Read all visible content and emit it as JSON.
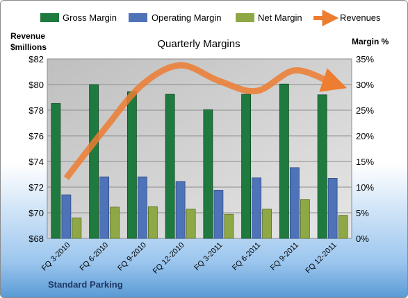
{
  "chart_data": {
    "type": "bar",
    "title": "Quarterly Margins",
    "footer": "Standard Parking",
    "categories": [
      "FQ 3-2010",
      "FQ 6-2010",
      "FQ 9-2010",
      "FQ 12-2010",
      "FQ 3-2011",
      "FQ 6-2011",
      "FQ 9-2011",
      "FQ 12-2011"
    ],
    "left_axis": {
      "label_line1": "Revenue",
      "label_line2": "$millions",
      "min": 68,
      "max": 82,
      "ticks": [
        "$68",
        "$70",
        "$72",
        "$74",
        "$76",
        "$78",
        "$80",
        "$82"
      ]
    },
    "right_axis": {
      "label": "Margin %",
      "min": 0,
      "max": 35,
      "ticks": [
        "0%",
        "5%",
        "10%",
        "15%",
        "20%",
        "25%",
        "30%",
        "35%"
      ]
    },
    "series": [
      {
        "name": "Gross Margin",
        "axis": "right",
        "color": "#1e7a3e",
        "values": [
          26.3,
          30.0,
          28.6,
          28.1,
          25.1,
          28.1,
          30.1,
          28.0
        ]
      },
      {
        "name": "Operating Margin",
        "axis": "right",
        "color": "#4f73b8",
        "values": [
          8.5,
          12.0,
          12.0,
          11.1,
          9.4,
          11.8,
          13.8,
          11.7
        ]
      },
      {
        "name": "Net Margin",
        "axis": "right",
        "color": "#8fa846",
        "values": [
          4.0,
          6.1,
          6.2,
          5.7,
          4.7,
          5.7,
          7.6,
          4.5
        ]
      },
      {
        "name": "Revenues",
        "axis": "left",
        "type": "line",
        "color": "#ed7d31",
        "values": [
          72.7,
          76.5,
          80.0,
          81.5,
          80.3,
          79.5,
          81.1,
          80.1
        ]
      }
    ],
    "grid": true,
    "legend_position": "top"
  }
}
